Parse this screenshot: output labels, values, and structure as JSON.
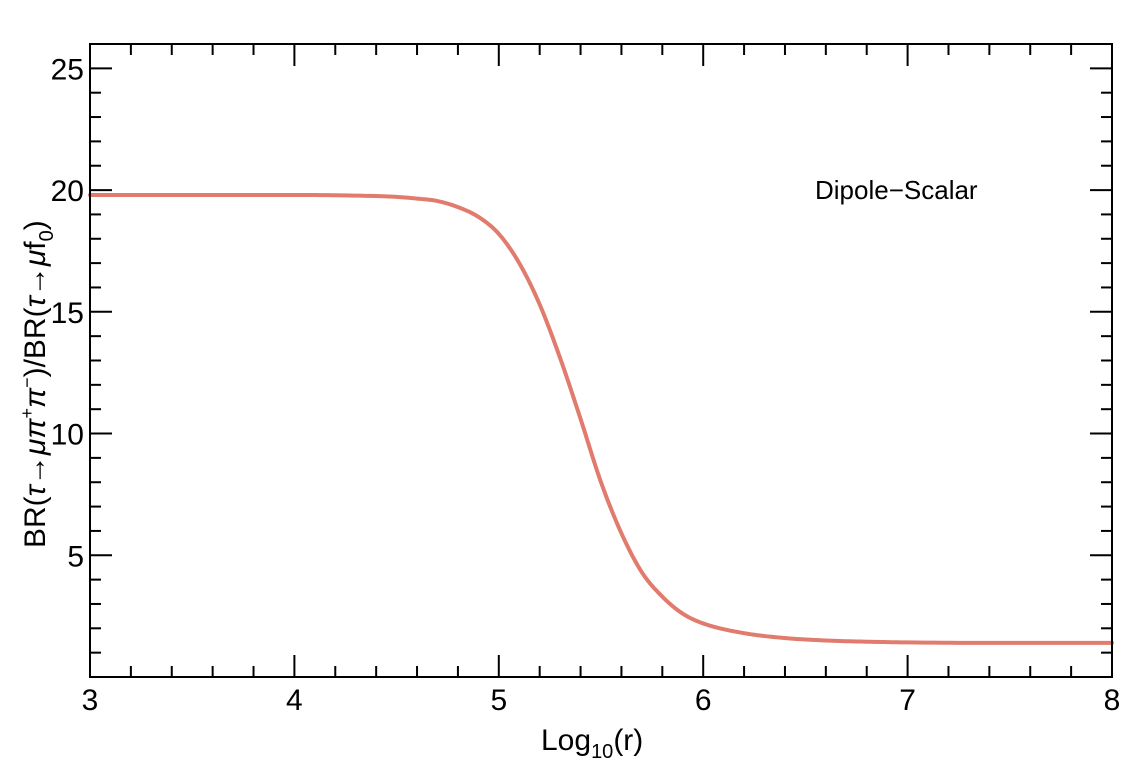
{
  "chart_data": {
    "type": "line",
    "title": "",
    "xlabel": "Log10(r)",
    "xlabel_parts": {
      "base": "Log",
      "sub": "10",
      "rest": "(r)"
    },
    "ylabel": "BR(τ→μπ⁺π⁻)/BR(τ→μf₀)",
    "ylabel_parts": {
      "p1": "BR(",
      "tau1": "τ",
      "arrow1": "→",
      "mupi": "μπ",
      "sup_plus": "+",
      "pi": "π",
      "sup_minus": "−",
      "p2": ")/BR(",
      "tau2": "τ",
      "arrow2": "→",
      "mu": "μ",
      "f": "f",
      "sub0": "0",
      "p3": ")"
    },
    "annotation": "Dipole−Scalar",
    "xlim": [
      3,
      8
    ],
    "ylim": [
      0,
      26
    ],
    "x_ticks": [
      3,
      4,
      5,
      6,
      7,
      8
    ],
    "x_tick_labels": [
      "3",
      "4",
      "5",
      "6",
      "7",
      "8"
    ],
    "y_ticks": [
      5,
      10,
      15,
      20,
      25
    ],
    "y_tick_labels": [
      "5",
      "10",
      "15",
      "20",
      "25"
    ],
    "grid": false,
    "line_color": "#e07b6e",
    "series": [
      {
        "x": [
          3.0,
          3.5,
          4.0,
          4.25,
          4.5,
          4.6,
          4.7,
          4.8,
          4.9,
          5.0,
          5.1,
          5.2,
          5.3,
          5.4,
          5.5,
          5.6,
          5.7,
          5.8,
          5.9,
          6.0,
          6.2,
          6.4,
          6.6,
          6.8,
          7.0,
          7.5,
          8.0
        ],
        "y": [
          19.8,
          19.8,
          19.8,
          19.78,
          19.72,
          19.65,
          19.55,
          19.3,
          18.9,
          18.2,
          17.0,
          15.3,
          13.1,
          10.6,
          8.0,
          5.9,
          4.3,
          3.3,
          2.6,
          2.2,
          1.8,
          1.6,
          1.5,
          1.45,
          1.42,
          1.4,
          1.4
        ]
      }
    ]
  }
}
